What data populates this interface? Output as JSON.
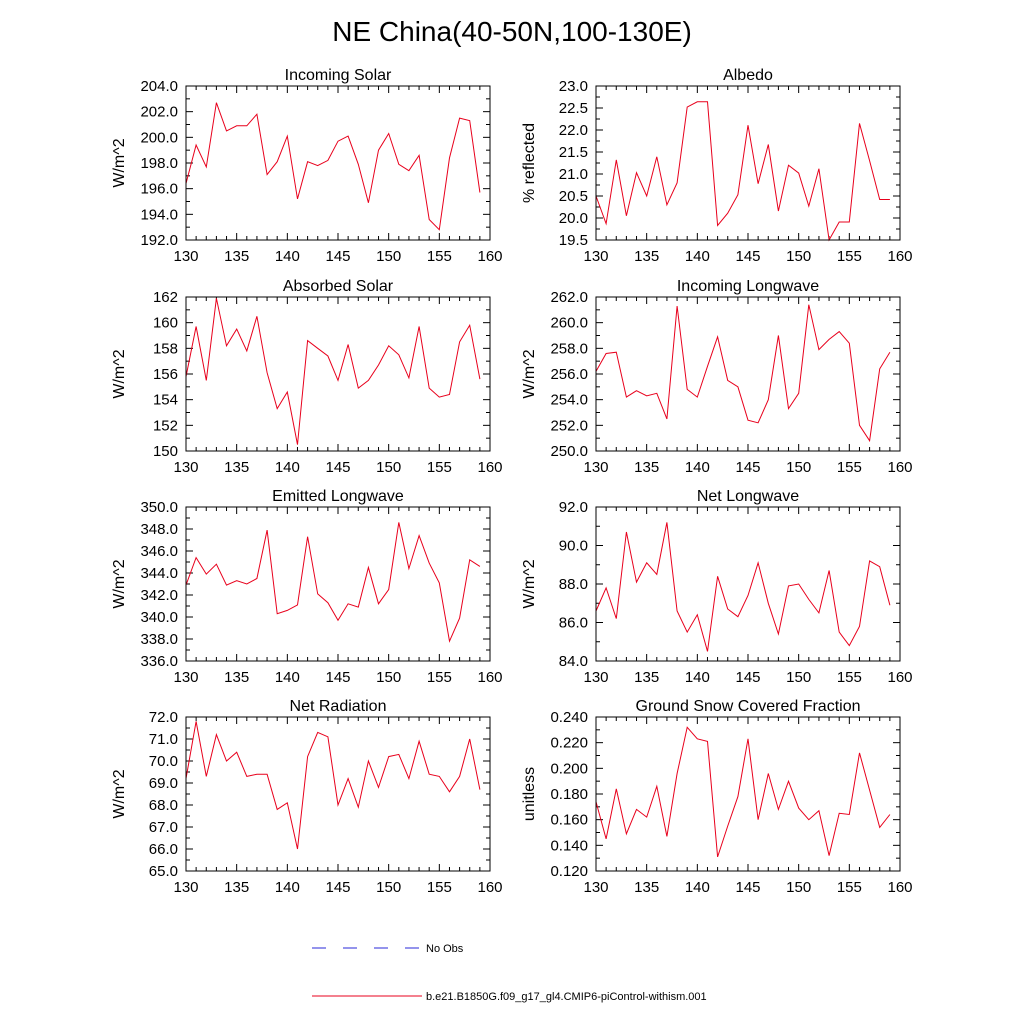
{
  "page_title": "NE China(40-50N,100-130E)",
  "legend": {
    "items": [
      {
        "label": "No Obs",
        "color": "#2a2ad8",
        "style": "dashed"
      },
      {
        "label": "b.e21.B1850G.f09_g17_gl4.CMIP6-piControl-withism.001",
        "color": "#e8001c",
        "style": "solid"
      }
    ]
  },
  "colors": {
    "model_line": "#e8001c",
    "obs_line": "#2a2ad8",
    "axis": "#000000"
  },
  "chart_data": [
    {
      "type": "line",
      "title": "Incoming Solar",
      "ylabel": "W/m^2",
      "xlim": [
        130,
        160
      ],
      "ylim": [
        192,
        204
      ],
      "xticks": [
        130,
        135,
        140,
        145,
        150,
        155,
        160
      ],
      "yticks": [
        "192.0",
        "194.0",
        "196.0",
        "198.0",
        "200.0",
        "202.0",
        "204.0"
      ],
      "x": [
        130,
        131,
        132,
        133,
        134,
        135,
        136,
        137,
        138,
        139,
        140,
        141,
        142,
        143,
        144,
        145,
        146,
        147,
        148,
        149,
        150,
        151,
        152,
        153,
        154,
        155,
        156,
        157,
        158,
        159
      ],
      "series": [
        {
          "values": [
            196.4,
            199.4,
            197.7,
            202.7,
            200.5,
            200.9,
            200.9,
            201.8,
            197.1,
            198.1,
            200.1,
            195.2,
            198.1,
            197.8,
            198.2,
            199.7,
            200.1,
            197.9,
            194.9,
            199.0,
            200.3,
            197.9,
            197.4,
            198.6,
            193.6,
            192.8,
            198.4,
            201.5,
            201.3,
            195.7
          ]
        }
      ]
    },
    {
      "type": "line",
      "title": "Albedo",
      "ylabel": "% reflected",
      "xlim": [
        130,
        160
      ],
      "ylim": [
        19.5,
        23.0
      ],
      "xticks": [
        130,
        135,
        140,
        145,
        150,
        155,
        160
      ],
      "yticks": [
        "19.5",
        "20.0",
        "20.5",
        "21.0",
        "21.5",
        "22.0",
        "22.5",
        "23.0"
      ],
      "x": [
        130,
        131,
        132,
        133,
        134,
        135,
        136,
        137,
        138,
        139,
        140,
        141,
        142,
        143,
        144,
        145,
        146,
        147,
        148,
        149,
        150,
        151,
        152,
        153,
        154,
        155,
        156,
        157,
        158,
        159
      ],
      "series": [
        {
          "values": [
            20.5,
            19.87,
            21.32,
            20.05,
            21.03,
            20.5,
            21.39,
            20.3,
            20.8,
            22.52,
            22.64,
            22.64,
            19.83,
            20.11,
            20.53,
            22.11,
            20.78,
            21.67,
            20.16,
            21.2,
            21.02,
            20.27,
            21.12,
            19.5,
            19.91,
            19.91,
            22.15,
            21.3,
            20.42,
            20.42
          ]
        }
      ]
    },
    {
      "type": "line",
      "title": "Absorbed Solar",
      "ylabel": "W/m^2",
      "xlim": [
        130,
        160
      ],
      "ylim": [
        150,
        162
      ],
      "xticks": [
        130,
        135,
        140,
        145,
        150,
        155,
        160
      ],
      "yticks": [
        "150",
        "152",
        "154",
        "156",
        "158",
        "160",
        "162"
      ],
      "x": [
        130,
        131,
        132,
        133,
        134,
        135,
        136,
        137,
        138,
        139,
        140,
        141,
        142,
        143,
        144,
        145,
        146,
        147,
        148,
        149,
        150,
        151,
        152,
        153,
        154,
        155,
        156,
        157,
        158,
        159
      ],
      "series": [
        {
          "values": [
            155.8,
            159.7,
            155.5,
            161.9,
            158.2,
            159.5,
            157.8,
            160.5,
            156.1,
            153.3,
            154.6,
            150.5,
            158.6,
            158.0,
            157.4,
            155.5,
            158.3,
            154.9,
            155.5,
            156.7,
            158.2,
            157.5,
            155.7,
            159.7,
            154.9,
            154.2,
            154.4,
            158.5,
            159.8,
            155.6
          ]
        }
      ]
    },
    {
      "type": "line",
      "title": "Incoming Longwave",
      "ylabel": "W/m^2",
      "xlim": [
        130,
        160
      ],
      "ylim": [
        250,
        262
      ],
      "xticks": [
        130,
        135,
        140,
        145,
        150,
        155,
        160
      ],
      "yticks": [
        "250.0",
        "252.0",
        "254.0",
        "256.0",
        "258.0",
        "260.0",
        "262.0"
      ],
      "x": [
        130,
        131,
        132,
        133,
        134,
        135,
        136,
        137,
        138,
        139,
        140,
        141,
        142,
        143,
        144,
        145,
        146,
        147,
        148,
        149,
        150,
        151,
        152,
        153,
        154,
        155,
        156,
        157,
        158,
        159
      ],
      "series": [
        {
          "values": [
            256.2,
            257.6,
            257.7,
            254.2,
            254.7,
            254.3,
            254.5,
            252.5,
            261.3,
            254.8,
            254.2,
            256.6,
            258.9,
            255.5,
            255.0,
            252.4,
            252.2,
            254.0,
            259.0,
            253.3,
            254.5,
            261.4,
            257.9,
            258.7,
            259.3,
            258.4,
            252.0,
            250.8,
            256.4,
            257.7
          ]
        }
      ]
    },
    {
      "type": "line",
      "title": "Emitted Longwave",
      "ylabel": "W/m^2",
      "xlim": [
        130,
        160
      ],
      "ylim": [
        336,
        350
      ],
      "xticks": [
        130,
        135,
        140,
        145,
        150,
        155,
        160
      ],
      "yticks": [
        "336.0",
        "338.0",
        "340.0",
        "342.0",
        "344.0",
        "346.0",
        "348.0",
        "350.0"
      ],
      "x": [
        130,
        131,
        132,
        133,
        134,
        135,
        136,
        137,
        138,
        139,
        140,
        141,
        142,
        143,
        144,
        145,
        146,
        147,
        148,
        149,
        150,
        151,
        152,
        153,
        154,
        155,
        156,
        157,
        158,
        159
      ],
      "series": [
        {
          "values": [
            342.9,
            345.4,
            343.9,
            344.8,
            342.9,
            343.3,
            343.0,
            343.5,
            347.9,
            340.3,
            340.6,
            341.1,
            347.3,
            342.1,
            341.3,
            339.7,
            341.2,
            340.9,
            344.5,
            341.2,
            342.5,
            348.6,
            344.4,
            347.4,
            344.9,
            343.1,
            337.8,
            339.9,
            345.2,
            344.6
          ]
        }
      ]
    },
    {
      "type": "line",
      "title": "Net Longwave",
      "ylabel": "W/m^2",
      "xlim": [
        130,
        160
      ],
      "ylim": [
        84,
        92
      ],
      "xticks": [
        130,
        135,
        140,
        145,
        150,
        155,
        160
      ],
      "yticks": [
        "84.0",
        "86.0",
        "88.0",
        "90.0",
        "92.0"
      ],
      "x": [
        130,
        131,
        132,
        133,
        134,
        135,
        136,
        137,
        138,
        139,
        140,
        141,
        142,
        143,
        144,
        145,
        146,
        147,
        148,
        149,
        150,
        151,
        152,
        153,
        154,
        155,
        156,
        157,
        158,
        159
      ],
      "series": [
        {
          "values": [
            86.6,
            87.8,
            86.2,
            90.7,
            88.1,
            89.1,
            88.5,
            91.2,
            86.6,
            85.5,
            86.4,
            84.5,
            88.4,
            86.7,
            86.3,
            87.4,
            89.1,
            87.0,
            85.4,
            87.9,
            88.0,
            87.2,
            86.5,
            88.7,
            85.5,
            84.8,
            85.8,
            89.2,
            88.9,
            86.9
          ]
        }
      ]
    },
    {
      "type": "line",
      "title": "Net Radiation",
      "ylabel": "W/m^2",
      "xlim": [
        130,
        160
      ],
      "ylim": [
        65,
        72
      ],
      "xticks": [
        130,
        135,
        140,
        145,
        150,
        155,
        160
      ],
      "yticks": [
        "65.0",
        "66.0",
        "67.0",
        "68.0",
        "69.0",
        "70.0",
        "71.0",
        "72.0"
      ],
      "x": [
        130,
        131,
        132,
        133,
        134,
        135,
        136,
        137,
        138,
        139,
        140,
        141,
        142,
        143,
        144,
        145,
        146,
        147,
        148,
        149,
        150,
        151,
        152,
        153,
        154,
        155,
        156,
        157,
        158,
        159
      ],
      "series": [
        {
          "values": [
            69.2,
            71.8,
            69.3,
            71.2,
            70.0,
            70.4,
            69.3,
            69.4,
            69.4,
            67.8,
            68.1,
            66.0,
            70.2,
            71.3,
            71.1,
            68.0,
            69.2,
            67.9,
            70.0,
            68.8,
            70.2,
            70.3,
            69.2,
            70.9,
            69.4,
            69.3,
            68.6,
            69.3,
            71.0,
            68.7
          ]
        }
      ]
    },
    {
      "type": "line",
      "title": "Ground Snow Covered Fraction",
      "ylabel": "unitless",
      "xlim": [
        130,
        160
      ],
      "ylim": [
        0.12,
        0.24
      ],
      "xticks": [
        130,
        135,
        140,
        145,
        150,
        155,
        160
      ],
      "yticks": [
        "0.120",
        "0.140",
        "0.160",
        "0.180",
        "0.200",
        "0.220",
        "0.240"
      ],
      "x": [
        130,
        131,
        132,
        133,
        134,
        135,
        136,
        137,
        138,
        139,
        140,
        141,
        142,
        143,
        144,
        145,
        146,
        147,
        148,
        149,
        150,
        151,
        152,
        153,
        154,
        155,
        156,
        157,
        158,
        159
      ],
      "series": [
        {
          "values": [
            0.174,
            0.145,
            0.184,
            0.149,
            0.168,
            0.162,
            0.186,
            0.147,
            0.196,
            0.232,
            0.223,
            0.221,
            0.131,
            0.155,
            0.178,
            0.223,
            0.16,
            0.196,
            0.168,
            0.19,
            0.169,
            0.16,
            0.167,
            0.132,
            0.165,
            0.164,
            0.212,
            0.183,
            0.154,
            0.164
          ]
        }
      ]
    }
  ]
}
